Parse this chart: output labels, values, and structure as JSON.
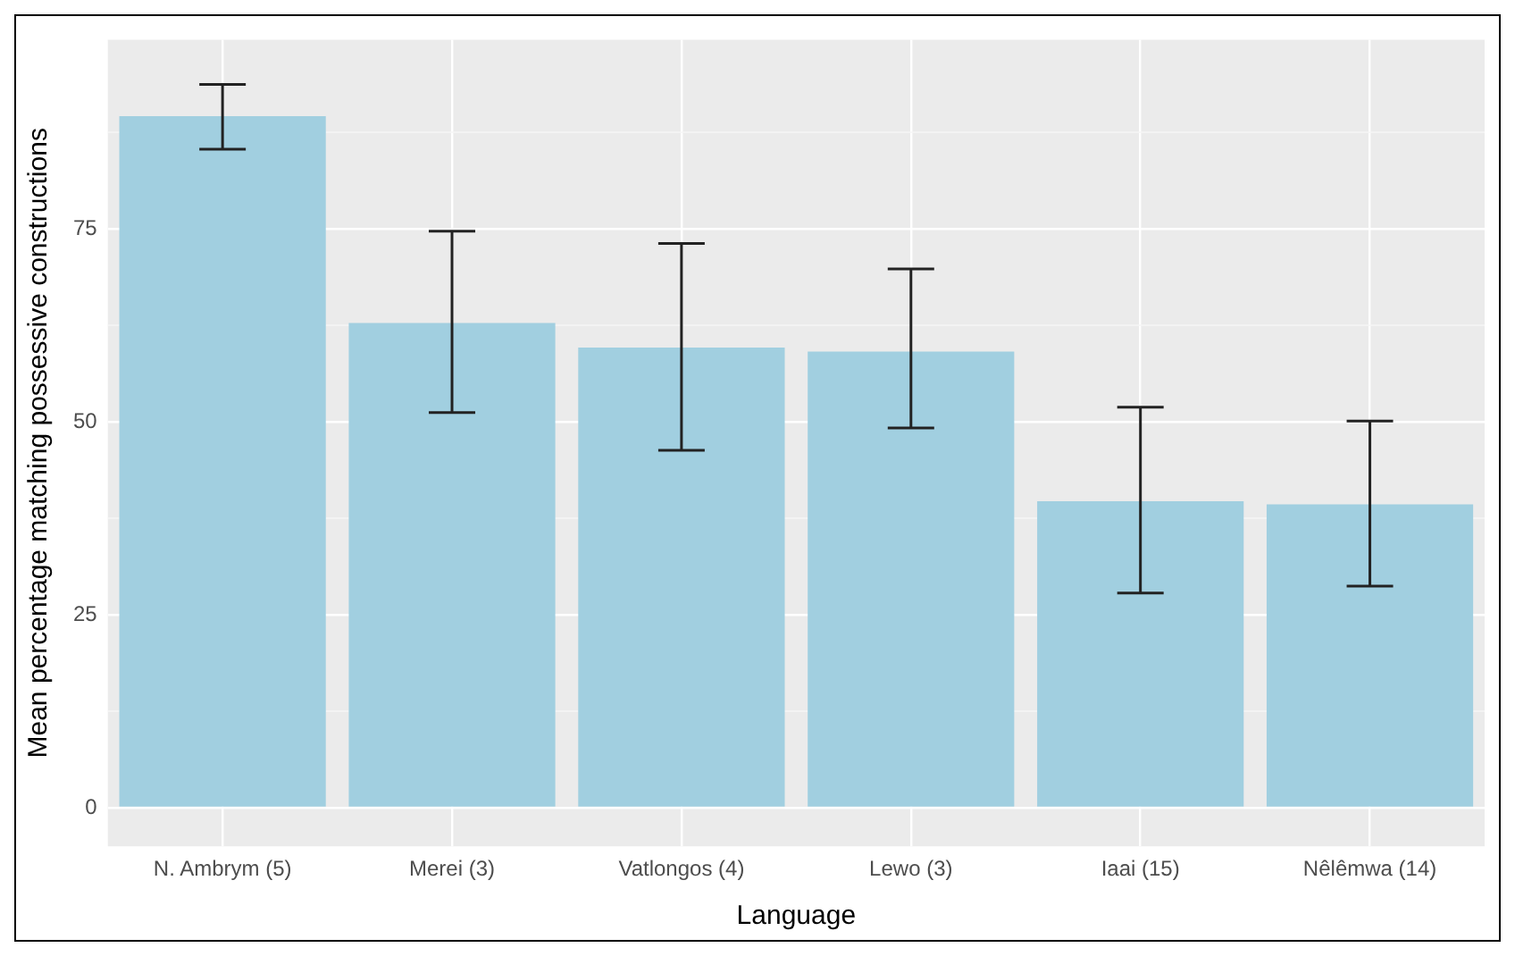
{
  "chart_data": {
    "type": "bar",
    "xlabel": "Language",
    "ylabel": "Mean percentage matching possessive constructions",
    "categories": [
      "N. Ambrym (5)",
      "Merei (3)",
      "Vatlongos (4)",
      "Lewo (3)",
      "Iaai (15)",
      "Nêlêmwa (14)"
    ],
    "values": [
      89.6,
      62.8,
      59.6,
      59.1,
      39.7,
      39.3
    ],
    "errors": [
      [
        85.3,
        93.7
      ],
      [
        51.2,
        74.7
      ],
      [
        46.3,
        73.1
      ],
      [
        49.2,
        69.8
      ],
      [
        27.8,
        51.9
      ],
      [
        28.7,
        50.1
      ]
    ],
    "color": "#a1cfe0",
    "ylim": [
      -5,
      99.5
    ],
    "yticks": [
      0,
      {
        "value": 12.5,
        "label": null
      },
      25,
      {
        "value": 37.5,
        "label": null
      },
      50,
      {
        "value": 62.5,
        "label": null
      },
      75,
      {
        "value": 87.5,
        "label": null
      }
    ],
    "grid": true
  }
}
